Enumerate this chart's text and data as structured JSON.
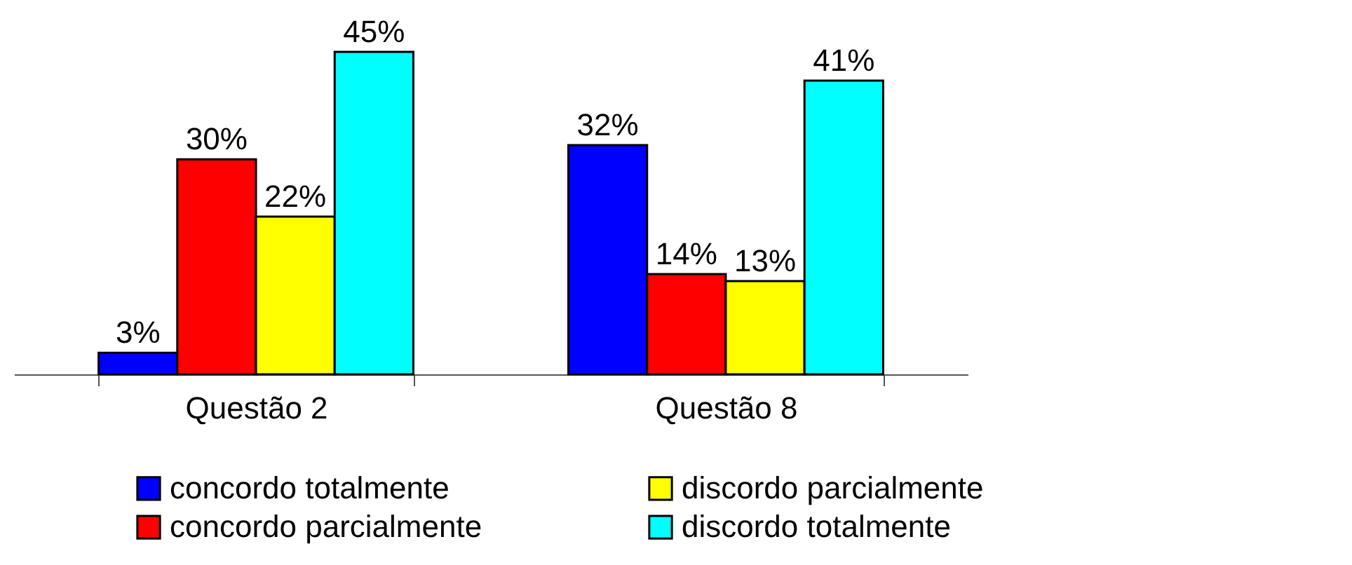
{
  "chart_data": {
    "type": "bar",
    "categories": [
      "Questão 2",
      "Questão 8"
    ],
    "legend": "bottom",
    "grid": false,
    "series": [
      {
        "name": "concordo totalmente",
        "color": "#0000ff",
        "values": [
          3,
          32
        ],
        "value_labels": [
          "3%",
          "32%"
        ]
      },
      {
        "name": "concordo parcialmente",
        "color": "#ff0000",
        "values": [
          30,
          14
        ],
        "value_labels": [
          "30%",
          "14%"
        ]
      },
      {
        "name": "discordo parcialmente",
        "color": "#ffff00",
        "values": [
          22,
          13
        ],
        "value_labels": [
          "22%",
          "13%"
        ]
      },
      {
        "name": "discordo totalmente",
        "color": "#00ffff",
        "values": [
          45,
          41
        ],
        "value_labels": [
          "45%",
          "41%"
        ]
      }
    ]
  }
}
